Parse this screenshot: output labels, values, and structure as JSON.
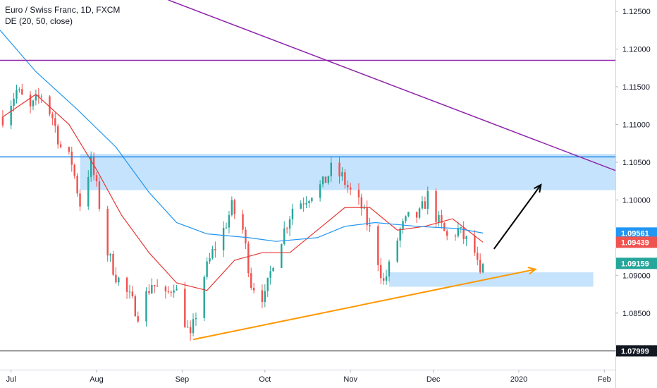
{
  "legend": {
    "title": "Euro / Swiss Franc, 1D, FXCM",
    "indicator": "DE (20, 50, close)"
  },
  "colors": {
    "up": "#26a69a",
    "down": "#ef5350",
    "ma_fast": "#e53935",
    "ma_slow": "#2196f3",
    "zone": "#bbdefb",
    "zone_edge": "#1e88e5",
    "trend_purple": "#8e24aa",
    "trend_orange": "#ff9800",
    "support_line": "#000000",
    "badge_blue": "#2196f3",
    "badge_red": "#ef5350",
    "badge_teal": "#26a69a",
    "badge_black": "#131722"
  },
  "chart_data": {
    "type": "candlestick",
    "ylim": [
      1.0775,
      1.1265
    ],
    "xlim": [
      "2019-06-27",
      "2020-02-05"
    ],
    "y_ticks": [
      "1.12500",
      "1.12000",
      "1.11500",
      "1.11000",
      "1.10500",
      "1.10000",
      "1.09500",
      "1.09000",
      "1.08500",
      "1.08000"
    ],
    "x_ticks": [
      {
        "label": "Jul",
        "date": "2019-07-01"
      },
      {
        "label": "Aug",
        "date": "2019-08-01"
      },
      {
        "label": "Sep",
        "date": "2019-09-01"
      },
      {
        "label": "Oct",
        "date": "2019-10-01"
      },
      {
        "label": "Nov",
        "date": "2019-11-01"
      },
      {
        "label": "Dec",
        "date": "2019-12-01"
      },
      {
        "label": "2020",
        "date": "2020-01-01"
      },
      {
        "label": "Feb",
        "date": "2020-02-01"
      }
    ],
    "close_path": [
      [
        "2019-06-28",
        1.111
      ],
      [
        "2019-07-03",
        1.1145
      ],
      [
        "2019-07-08",
        1.112
      ],
      [
        "2019-07-12",
        1.114
      ],
      [
        "2019-07-16",
        1.111
      ],
      [
        "2019-07-19",
        1.107
      ],
      [
        "2019-07-23",
        1.105
      ],
      [
        "2019-07-26",
        1.0995
      ],
      [
        "2019-07-30",
        1.105
      ],
      [
        "2019-08-01",
        1.1015
      ],
      [
        "2019-08-05",
        1.093
      ],
      [
        "2019-08-08",
        1.09
      ],
      [
        "2019-08-13",
        1.087
      ],
      [
        "2019-08-16",
        1.085
      ],
      [
        "2019-08-21",
        1.089
      ],
      [
        "2019-08-26",
        1.087
      ],
      [
        "2019-08-29",
        1.089
      ],
      [
        "2019-09-02",
        1.084
      ],
      [
        "2019-09-04",
        1.0815
      ],
      [
        "2019-09-09",
        1.09
      ],
      [
        "2019-09-12",
        1.093
      ],
      [
        "2019-09-16",
        1.096
      ],
      [
        "2019-09-19",
        1.099
      ],
      [
        "2019-09-23",
        1.096
      ],
      [
        "2019-09-26",
        1.089
      ],
      [
        "2019-10-01",
        1.087
      ],
      [
        "2019-10-04",
        1.092
      ],
      [
        "2019-10-08",
        1.096
      ],
      [
        "2019-10-11",
        1.099
      ],
      [
        "2019-10-15",
        1.1
      ],
      [
        "2019-10-18",
        1.101
      ],
      [
        "2019-10-22",
        1.102
      ],
      [
        "2019-10-25",
        1.104
      ],
      [
        "2019-10-29",
        1.103
      ],
      [
        "2019-11-01",
        1.101
      ],
      [
        "2019-11-05",
        1.099
      ],
      [
        "2019-11-08",
        1.096
      ],
      [
        "2019-11-11",
        1.092
      ],
      [
        "2019-11-13",
        1.089
      ],
      [
        "2019-11-15",
        1.091
      ],
      [
        "2019-11-19",
        1.096
      ],
      [
        "2019-11-22",
        1.0975
      ],
      [
        "2019-11-26",
        1.098
      ],
      [
        "2019-11-29",
        1.1005
      ],
      [
        "2019-12-03",
        1.097
      ],
      [
        "2019-12-06",
        1.095
      ],
      [
        "2019-12-10",
        1.096
      ],
      [
        "2019-12-13",
        1.0945
      ],
      [
        "2019-12-16",
        1.093
      ],
      [
        "2019-12-18",
        1.0895
      ],
      [
        "2019-12-19",
        1.0915
      ]
    ],
    "series": [
      {
        "name": "20",
        "values": [
          [
            "2019-06-28",
            1.111
          ],
          [
            "2019-07-10",
            1.114
          ],
          [
            "2019-07-22",
            1.11
          ],
          [
            "2019-08-01",
            1.104
          ],
          [
            "2019-08-10",
            1.098
          ],
          [
            "2019-08-20",
            1.093
          ],
          [
            "2019-08-30",
            1.089
          ],
          [
            "2019-09-10",
            1.088
          ],
          [
            "2019-09-20",
            1.092
          ],
          [
            "2019-09-30",
            1.093
          ],
          [
            "2019-10-10",
            1.093
          ],
          [
            "2019-10-20",
            1.096
          ],
          [
            "2019-10-30",
            1.099
          ],
          [
            "2019-11-08",
            1.099
          ],
          [
            "2019-11-18",
            1.096
          ],
          [
            "2019-11-28",
            1.0965
          ],
          [
            "2019-12-08",
            1.0975
          ],
          [
            "2019-12-19",
            1.0944
          ]
        ]
      },
      {
        "name": "50",
        "values": [
          [
            "2019-06-27",
            1.1225
          ],
          [
            "2019-07-10",
            1.117
          ],
          [
            "2019-07-25",
            1.112
          ],
          [
            "2019-08-08",
            1.107
          ],
          [
            "2019-08-20",
            1.101
          ],
          [
            "2019-08-30",
            1.097
          ],
          [
            "2019-09-10",
            1.0955
          ],
          [
            "2019-09-25",
            1.095
          ],
          [
            "2019-10-05",
            1.0945
          ],
          [
            "2019-10-20",
            1.095
          ],
          [
            "2019-10-30",
            1.0965
          ],
          [
            "2019-11-10",
            1.097
          ],
          [
            "2019-11-25",
            1.0965
          ],
          [
            "2019-12-10",
            1.0962
          ],
          [
            "2019-12-19",
            1.0956
          ]
        ]
      }
    ],
    "drawings": {
      "resistance_zone": {
        "from": "2019-07-26",
        "to": "2020-02-05",
        "low": 1.1013,
        "high": 1.1061
      },
      "resistance_line": {
        "from": "2019-06-27",
        "to": "2020-02-05",
        "price": 1.1057
      },
      "support_zone": {
        "from": "2019-11-15",
        "to": "2020-01-28",
        "low": 1.0885,
        "high": 1.0904
      },
      "horizontal_line": {
        "from": "2019-06-27",
        "to": "2020-02-05",
        "price": 1.1185
      },
      "support_level": {
        "from": "2019-06-27",
        "to": "2020-02-05",
        "price": 1.07999
      },
      "down_trendline": {
        "x1": "2019-08-27",
        "y1": 1.1265,
        "x2": "2020-02-05",
        "y2": 1.1039
      },
      "up_trendline": {
        "x1": "2019-09-05",
        "y1": 1.0815,
        "x2": "2020-01-07",
        "y2": 1.0908
      },
      "projection_arrow": {
        "x1": "2019-12-23",
        "y1": 1.0935,
        "x2": "2020-01-09",
        "y2": 1.102
      }
    },
    "price_labels": [
      {
        "text": "1.09561",
        "price": 1.09561,
        "color": "#2196f3"
      },
      {
        "text": "1.09439",
        "price": 1.09439,
        "color": "#ef5350"
      },
      {
        "text": "1.09159",
        "price": 1.09159,
        "color": "#26a69a"
      },
      {
        "text": "1.07999",
        "price": 1.07999,
        "color": "#131722"
      }
    ]
  }
}
